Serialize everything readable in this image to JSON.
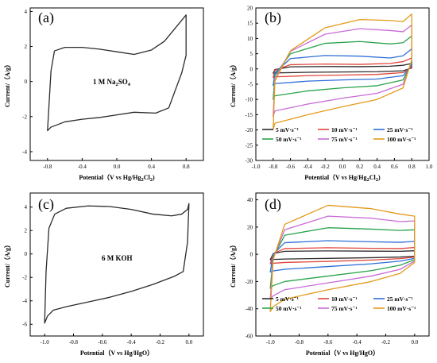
{
  "figure_title": "",
  "chart_data": [
    {
      "panel_label": "(a)",
      "type": "line",
      "ylabel": "Current/（A/g）",
      "xlabel_parts": [
        "Potential（V vs Hg/Hg",
        "2",
        "Cl",
        "2",
        ")"
      ],
      "annotation_parts": [
        "1 M Na",
        "2",
        "SO",
        "4"
      ],
      "xlim": [
        -1.0,
        1.0
      ],
      "ylim": [
        -4.5,
        4.2
      ],
      "xticks": [
        -0.8,
        -0.4,
        0.0,
        0.4,
        0.8
      ],
      "xtick_labels": [
        "-0.8",
        "-0.4",
        "0.0",
        "0.4",
        "0.8"
      ],
      "yticks": [
        -4,
        -2,
        0,
        2,
        4
      ],
      "ytick_labels": [
        "-4",
        "-2",
        "0",
        "2",
        "4"
      ],
      "series": [
        {
          "color": "#2b2b2b",
          "x": [
            -0.8,
            -0.76,
            -0.72,
            -0.6,
            -0.4,
            -0.2,
            0.0,
            0.2,
            0.4,
            0.55,
            0.65,
            0.75,
            0.8,
            0.8,
            0.75,
            0.6,
            0.45,
            0.2,
            0.0,
            -0.2,
            -0.4,
            -0.6,
            -0.76,
            -0.8
          ],
          "y": [
            -2.8,
            0.6,
            1.75,
            1.95,
            1.95,
            1.85,
            1.7,
            1.55,
            1.8,
            2.3,
            2.9,
            3.5,
            3.8,
            1.5,
            0.5,
            -1.5,
            -1.8,
            -1.75,
            -1.9,
            -2.05,
            -2.15,
            -2.3,
            -2.6,
            -2.8
          ]
        }
      ]
    },
    {
      "panel_label": "(b)",
      "type": "line",
      "ylabel": "Current/（A/g）",
      "xlabel_parts": [
        "Potential（V vs Hg/Hg",
        "2",
        "Cl",
        "2",
        ")"
      ],
      "xlim": [
        -1.0,
        1.0
      ],
      "ylim": [
        -30,
        20
      ],
      "xticks": [
        -1.0,
        -0.8,
        -0.6,
        -0.4,
        -0.2,
        0.0,
        0.2,
        0.4,
        0.6,
        0.8,
        1.0
      ],
      "xtick_labels": [
        "-1.0",
        "-0.8",
        "-0.6",
        "-0.4",
        "-0.2",
        "0.0",
        "0.2",
        "0.4",
        "0.6",
        "0.8",
        "1.0"
      ],
      "yticks": [
        -30,
        -25,
        -20,
        -15,
        -10,
        -5,
        0,
        5,
        10,
        15,
        20
      ],
      "ytick_labels": [
        "-30",
        "-25",
        "-20",
        "-15",
        "-10",
        "-5",
        "0",
        "5",
        "10",
        "15",
        "20"
      ],
      "legend": {
        "placement": "bottom",
        "columns": 3
      },
      "series": [
        {
          "name": "5 mV·s⁻¹",
          "color": "#2b2b2b",
          "amp": 1.0,
          "x": [
            -0.8,
            -0.78,
            -0.6,
            -0.2,
            0.2,
            0.55,
            0.7,
            0.8,
            0.8,
            0.7,
            0.4,
            0.0,
            -0.4,
            -0.78,
            -0.8
          ],
          "y": [
            -1.4,
            -0.2,
            0.7,
            0.8,
            0.75,
            0.9,
            1.2,
            1.8,
            0.3,
            -0.6,
            -0.9,
            -1.0,
            -1.1,
            -1.3,
            -1.4
          ]
        },
        {
          "name": "10 mV·s⁻¹",
          "color": "#e0453a",
          "amp": 2.0,
          "x": [
            -0.8,
            -0.78,
            -0.6,
            -0.2,
            0.2,
            0.55,
            0.7,
            0.8,
            0.8,
            0.7,
            0.4,
            0.0,
            -0.4,
            -0.78,
            -0.8
          ],
          "y": [
            -2.8,
            -0.4,
            1.4,
            1.6,
            1.5,
            1.8,
            2.4,
            3.6,
            0.6,
            -1.2,
            -1.8,
            -2.0,
            -2.2,
            -2.6,
            -2.8
          ]
        },
        {
          "name": "25 mV·s⁻¹",
          "color": "#2f6fd6",
          "amp": 3.6,
          "x": [
            -0.8,
            -0.78,
            -0.6,
            -0.2,
            0.2,
            0.55,
            0.7,
            0.8,
            0.8,
            0.7,
            0.4,
            0.0,
            -0.4,
            -0.78,
            -0.8
          ],
          "y": [
            -5.4,
            -1.2,
            3.4,
            4.4,
            4.2,
            3.6,
            4.3,
            6.6,
            1.2,
            -2.2,
            -3.3,
            -3.6,
            -4.0,
            -4.8,
            -5.4
          ]
        },
        {
          "name": "50 mV·s⁻¹",
          "color": "#27a34a",
          "amp": 5.8,
          "x": [
            -0.8,
            -0.78,
            -0.6,
            -0.2,
            0.2,
            0.55,
            0.7,
            0.8,
            0.8,
            0.7,
            0.4,
            0.0,
            -0.4,
            -0.78,
            -0.8
          ],
          "y": [
            -10.0,
            -2.0,
            5.0,
            8.4,
            9.0,
            8.2,
            8.6,
            10.8,
            2.0,
            -3.6,
            -5.5,
            -6.2,
            -7.2,
            -8.8,
            -10.0
          ]
        },
        {
          "name": "75 mV·s⁻¹",
          "color": "#c86bd6",
          "amp": 7.8,
          "x": [
            -0.8,
            -0.78,
            -0.6,
            -0.2,
            0.2,
            0.55,
            0.7,
            0.8,
            0.8,
            0.7,
            0.4,
            0.0,
            -0.4,
            -0.78,
            -0.8
          ],
          "y": [
            -15.5,
            -3.0,
            5.8,
            11.4,
            13.2,
            12.6,
            12.2,
            14.4,
            2.6,
            -5.0,
            -8.0,
            -9.6,
            -11.5,
            -13.8,
            -15.5
          ]
        },
        {
          "name": "100 mV·s⁻¹",
          "color": "#e39a1b",
          "amp": 10.0,
          "x": [
            -0.8,
            -0.78,
            -0.6,
            -0.2,
            0.2,
            0.55,
            0.7,
            0.8,
            0.8,
            0.7,
            0.4,
            0.0,
            -0.4,
            -0.78,
            -0.8
          ],
          "y": [
            -19.8,
            -4.0,
            6.0,
            13.5,
            16.2,
            15.9,
            15.5,
            18.0,
            3.0,
            -6.2,
            -10.0,
            -12.4,
            -15.0,
            -17.8,
            -19.8
          ]
        }
      ]
    },
    {
      "panel_label": "(c)",
      "type": "line",
      "ylabel": "Current/（A/g）",
      "xlabel_parts": [
        "Potential（V vs Hg/HgO）"
      ],
      "annotation_parts": [
        "6 M KOH"
      ],
      "xlim": [
        -1.1,
        0.1
      ],
      "ylim": [
        -7,
        5.2
      ],
      "xticks": [
        -1.0,
        -0.8,
        -0.6,
        -0.4,
        -0.2,
        0.0
      ],
      "xtick_labels": [
        "-1.0",
        "-0.8",
        "-0.6",
        "-0.4",
        "-0.2",
        "0.0"
      ],
      "yticks": [
        -6,
        -4,
        -2,
        0,
        2,
        4
      ],
      "ytick_labels": [
        "-6",
        "-4",
        "-2",
        "0",
        "2",
        "4"
      ],
      "series": [
        {
          "color": "#2b2b2b",
          "x": [
            -1.0,
            -0.99,
            -0.97,
            -0.93,
            -0.85,
            -0.7,
            -0.55,
            -0.4,
            -0.25,
            -0.12,
            -0.05,
            -0.01,
            0.0,
            -0.01,
            -0.04,
            -0.1,
            -0.25,
            -0.4,
            -0.55,
            -0.7,
            -0.85,
            -0.94,
            -0.98,
            -1.0
          ],
          "y": [
            -5.9,
            -1.5,
            2.2,
            3.4,
            3.9,
            4.1,
            4.05,
            3.8,
            3.4,
            3.25,
            3.4,
            3.8,
            4.3,
            1.0,
            -1.5,
            -1.9,
            -2.6,
            -3.2,
            -3.7,
            -4.1,
            -4.5,
            -4.8,
            -5.3,
            -5.9
          ]
        }
      ]
    },
    {
      "panel_label": "(d)",
      "type": "line",
      "ylabel": "Current/（A/g）",
      "xlabel_parts": [
        "Potential（V vs Hg/HgO）"
      ],
      "xlim": [
        -1.1,
        0.1
      ],
      "ylim": [
        -60,
        45
      ],
      "xticks": [
        -1.0,
        -0.8,
        -0.6,
        -0.4,
        -0.2,
        0.0
      ],
      "xtick_labels": [
        "-1.0",
        "-0.8",
        "-0.6",
        "-0.4",
        "-0.2",
        "0.0"
      ],
      "yticks": [
        -60,
        -40,
        -20,
        0,
        20,
        40
      ],
      "ytick_labels": [
        "-60",
        "-40",
        "-20",
        "0",
        "20",
        "40"
      ],
      "legend": {
        "placement": "bottom",
        "columns": 3
      },
      "series": [
        {
          "name": "5 mV·s⁻¹",
          "color": "#2b2b2b",
          "x": [
            -1.0,
            -0.98,
            -0.9,
            -0.6,
            -0.3,
            -0.1,
            0.0,
            0.0,
            -0.1,
            -0.3,
            -0.6,
            -0.9,
            -0.98,
            -1.0
          ],
          "y": [
            -4.0,
            0.5,
            2.2,
            2.5,
            2.3,
            2.2,
            2.6,
            -1.5,
            -2.0,
            -2.5,
            -3.0,
            -3.5,
            -3.8,
            -4.0
          ]
        },
        {
          "name": "10 mV·s⁻¹",
          "color": "#e0453a",
          "x": [
            -1.0,
            -0.98,
            -0.9,
            -0.6,
            -0.3,
            -0.1,
            0.0,
            0.0,
            -0.1,
            -0.3,
            -0.6,
            -0.9,
            -0.98,
            -1.0
          ],
          "y": [
            -7.0,
            0.5,
            4.2,
            4.8,
            4.4,
            4.2,
            5.0,
            -2.0,
            -3.2,
            -4.2,
            -5.2,
            -6.0,
            -6.6,
            -7.0
          ]
        },
        {
          "name": "25 mV·s⁻¹",
          "color": "#2f6fd6",
          "x": [
            -1.0,
            -0.98,
            -0.9,
            -0.6,
            -0.3,
            -0.1,
            0.0,
            0.0,
            -0.1,
            -0.3,
            -0.6,
            -0.9,
            -0.98,
            -1.0
          ],
          "y": [
            -13.0,
            0.0,
            8.5,
            10.0,
            9.2,
            8.8,
            9.5,
            -3.0,
            -5.0,
            -7.0,
            -9.0,
            -11.0,
            -12.2,
            -13.0
          ]
        },
        {
          "name": "50 mV·s⁻¹",
          "color": "#27a34a",
          "x": [
            -1.0,
            -0.98,
            -0.9,
            -0.6,
            -0.3,
            -0.1,
            0.0,
            0.0,
            -0.1,
            -0.3,
            -0.6,
            -0.9,
            -0.98,
            -1.0
          ],
          "y": [
            -25.0,
            -2.0,
            14.0,
            19.5,
            18.5,
            17.5,
            18.0,
            -4.0,
            -8.0,
            -12.0,
            -16.0,
            -20.0,
            -23.0,
            -25.0
          ]
        },
        {
          "name": "75 mV·s⁻¹",
          "color": "#c86bd6",
          "x": [
            -1.0,
            -0.98,
            -0.9,
            -0.6,
            -0.3,
            -0.1,
            0.0,
            0.0,
            -0.1,
            -0.3,
            -0.6,
            -0.9,
            -0.98,
            -1.0
          ],
          "y": [
            -33.0,
            -3.0,
            18.0,
            28.0,
            26.5,
            24.0,
            24.5,
            -5.0,
            -11.0,
            -16.0,
            -21.0,
            -26.0,
            -30.5,
            -33.0
          ]
        },
        {
          "name": "100 mV·s⁻¹",
          "color": "#e39a1b",
          "x": [
            -1.0,
            -0.98,
            -0.9,
            -0.6,
            -0.3,
            -0.1,
            0.0,
            0.0,
            -0.1,
            -0.3,
            -0.6,
            -0.9,
            -0.98,
            -1.0
          ],
          "y": [
            -42.0,
            -4.0,
            22.0,
            36.0,
            33.5,
            29.5,
            28.0,
            -6.0,
            -14.0,
            -20.0,
            -26.0,
            -33.0,
            -38.5,
            -42.0
          ]
        }
      ]
    }
  ]
}
